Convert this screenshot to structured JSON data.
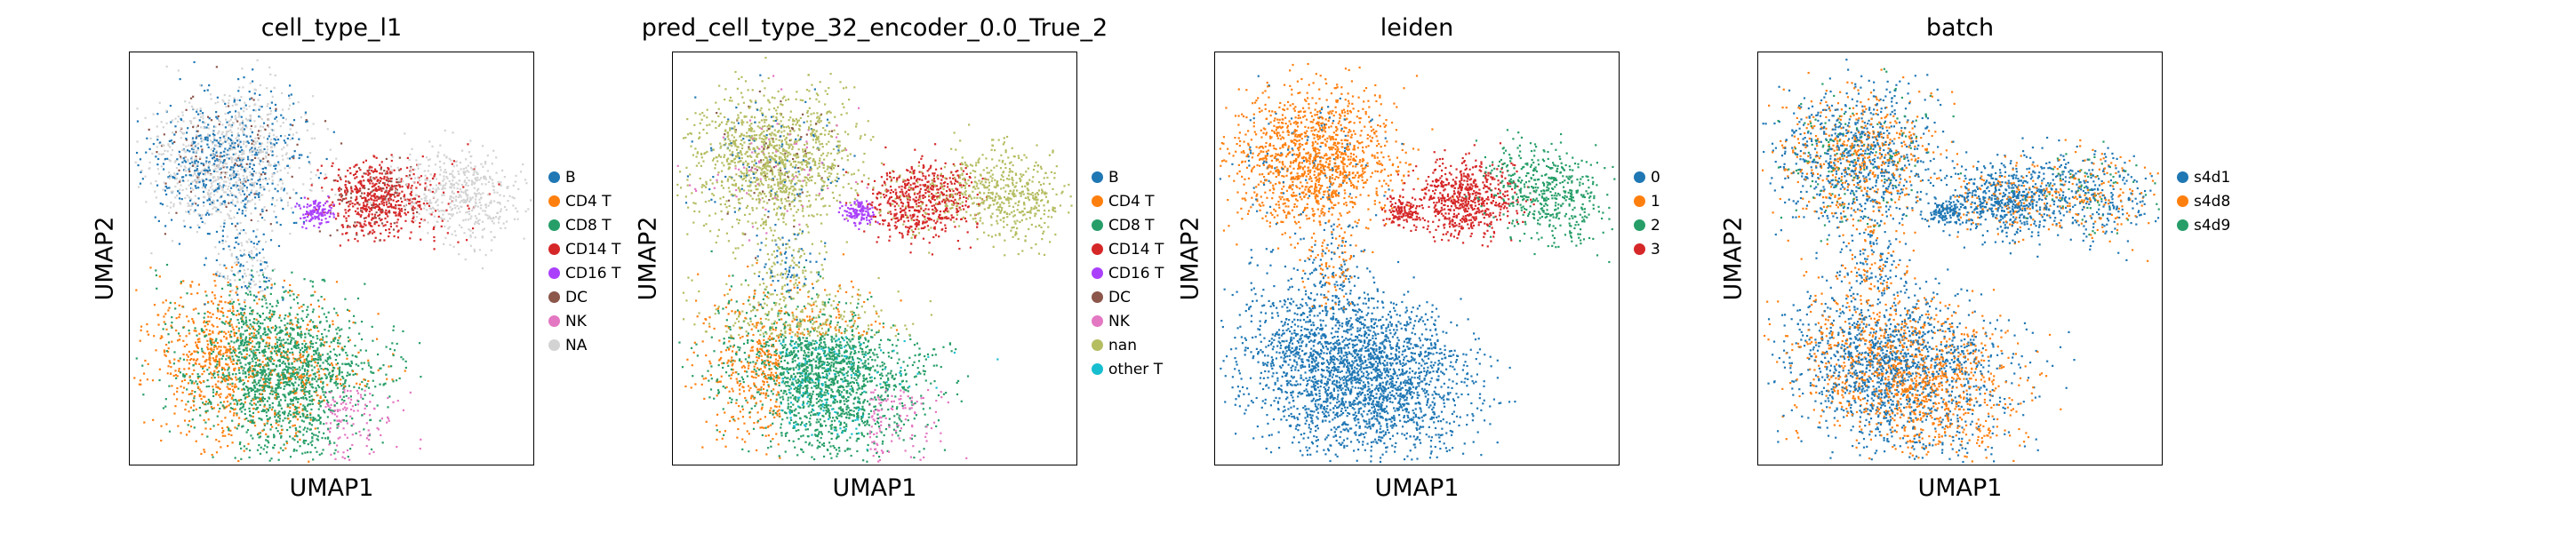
{
  "chart_data": [
    {
      "type": "scatter",
      "title": "cell_type_l1",
      "xlabel": "UMAP1",
      "ylabel": "UMAP2",
      "legend_position": "right",
      "legend": [
        {
          "label": "B",
          "color": "#1f77b4"
        },
        {
          "label": "CD4 T",
          "color": "#ff7f0e"
        },
        {
          "label": "CD8 T",
          "color": "#279e68"
        },
        {
          "label": "CD14 T",
          "color": "#d62728"
        },
        {
          "label": "CD16 T",
          "color": "#aa40fc"
        },
        {
          "label": "DC",
          "color": "#8c564b"
        },
        {
          "label": "NK",
          "color": "#e377c2"
        },
        {
          "label": "NA",
          "color": "#d3d3d3"
        }
      ]
    },
    {
      "type": "scatter",
      "title": "pred_cell_type_32_encoder_0.0_True_2",
      "xlabel": "UMAP1",
      "ylabel": "UMAP2",
      "legend_position": "right",
      "legend": [
        {
          "label": "B",
          "color": "#1f77b4"
        },
        {
          "label": "CD4 T",
          "color": "#ff7f0e"
        },
        {
          "label": "CD8 T",
          "color": "#279e68"
        },
        {
          "label": "CD14 T",
          "color": "#d62728"
        },
        {
          "label": "CD16 T",
          "color": "#aa40fc"
        },
        {
          "label": "DC",
          "color": "#8c564b"
        },
        {
          "label": "NK",
          "color": "#e377c2"
        },
        {
          "label": "nan",
          "color": "#b5bd61"
        },
        {
          "label": "other T",
          "color": "#17becf"
        }
      ]
    },
    {
      "type": "scatter",
      "title": "leiden",
      "xlabel": "UMAP1",
      "ylabel": "UMAP2",
      "legend_position": "right",
      "legend": [
        {
          "label": "0",
          "color": "#1f77b4"
        },
        {
          "label": "1",
          "color": "#ff7f0e"
        },
        {
          "label": "2",
          "color": "#279e68"
        },
        {
          "label": "3",
          "color": "#d62728"
        }
      ]
    },
    {
      "type": "scatter",
      "title": "batch",
      "xlabel": "UMAP1",
      "ylabel": "UMAP2",
      "legend_position": "right",
      "legend": [
        {
          "label": "s4d1",
          "color": "#1f77b4"
        },
        {
          "label": "s4d8",
          "color": "#ff7f0e"
        },
        {
          "label": "s4d9",
          "color": "#279e68"
        }
      ]
    }
  ]
}
